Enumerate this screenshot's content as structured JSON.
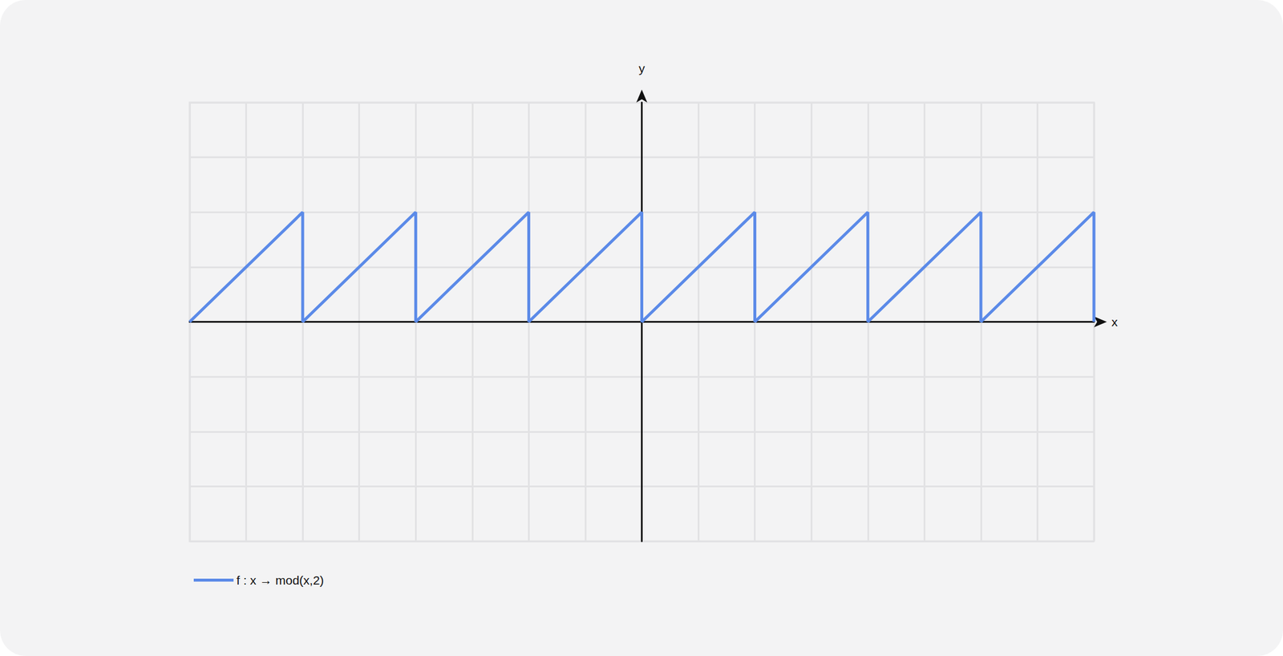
{
  "chart_data": {
    "type": "line",
    "x_label": "x",
    "y_label": "y",
    "series": [
      {
        "name": "f : x → mod(x,2)",
        "color": "#5b8ae8",
        "x": [
          -8,
          -6,
          -6,
          -4,
          -4,
          -2,
          -2,
          0,
          0,
          2,
          2,
          4,
          4,
          6,
          6,
          8,
          8
        ],
        "values": [
          0,
          2,
          0,
          2,
          0,
          2,
          0,
          2,
          0,
          2,
          0,
          2,
          0,
          2,
          0,
          2,
          0
        ]
      }
    ],
    "xlim": [
      -8,
      8
    ],
    "ylim": [
      -4,
      4
    ],
    "xticks": [
      -8,
      -7,
      -6,
      -5,
      -4,
      -3,
      -2,
      -1,
      0,
      1,
      2,
      3,
      4,
      5,
      6,
      7,
      8
    ],
    "yticks": [
      -4,
      -3,
      -2,
      -1,
      0,
      1,
      2,
      3,
      4
    ],
    "grid": true,
    "tick_labels": false,
    "legend": "bottom-left"
  }
}
